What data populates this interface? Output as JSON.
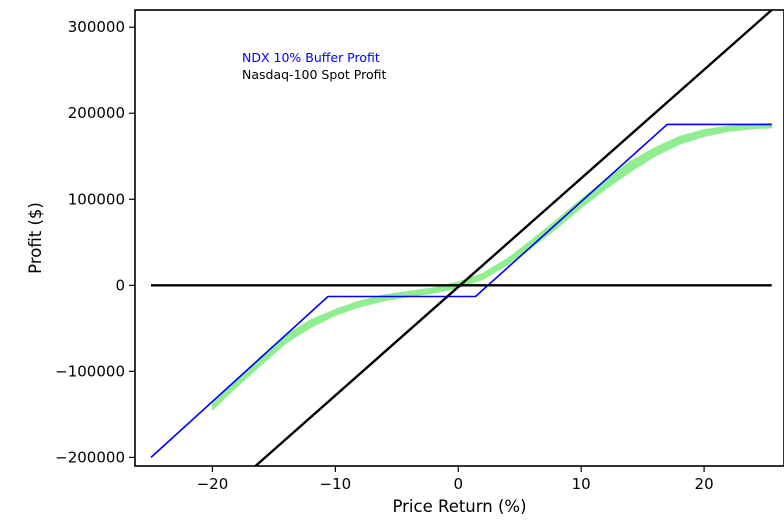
{
  "chart_data": {
    "type": "line",
    "title": "",
    "xlabel": "Price Return (%)",
    "ylabel": "Profit ($)",
    "xlim": [
      -26.3,
      26.5
    ],
    "ylim": [
      -210000,
      320000
    ],
    "xticks": [
      -20,
      -10,
      0,
      10,
      20
    ],
    "xtick_labels": [
      "−20",
      "−10",
      "0",
      "10",
      "20"
    ],
    "yticks": [
      -200000,
      -100000,
      0,
      100000,
      200000,
      300000
    ],
    "ytick_labels": [
      "−200000",
      "−100000",
      "0",
      "100000",
      "200000",
      "300000"
    ],
    "grid": false,
    "legend_position": "upper-left",
    "legend": [
      {
        "label": "NDX 10% Buffer Profit",
        "color": "#0000ff"
      },
      {
        "label": "Nasdaq-100 Spot Profit",
        "color": "#000000"
      }
    ],
    "series": [
      {
        "name": "NDX 10% Buffer Profit",
        "color": "#0000ff",
        "style": "line",
        "x": [
          -25,
          -10.6,
          1.4,
          17,
          25.5
        ],
        "y": [
          -200000,
          -13000,
          -13000,
          187000,
          187000
        ]
      },
      {
        "name": "Nasdaq-100 Spot Profit",
        "color": "#000000",
        "style": "line",
        "x": [
          -16.5,
          25.5
        ],
        "y": [
          -210000,
          320000
        ]
      },
      {
        "color": "#000000",
        "style": "line",
        "x": [
          -25,
          25.5
        ],
        "y": [
          0,
          0
        ]
      },
      {
        "color": "#90ee90",
        "style": "band",
        "x": [
          -20,
          -18,
          -16,
          -14,
          -12,
          -10,
          -8,
          -6,
          -4,
          -2,
          0,
          2,
          4,
          6,
          8,
          10,
          12,
          14,
          16,
          18,
          20,
          22,
          24,
          25.5
        ],
        "y_low": [
          -145000,
          -118000,
          -92000,
          -67000,
          -49000,
          -35000,
          -25000,
          -18000,
          -13000,
          -9000,
          -3000,
          7000,
          24000,
          44000,
          66000,
          90000,
          112000,
          132000,
          150000,
          164000,
          173000,
          179000,
          182000,
          183000
        ],
        "y_high": [
          -138000,
          -110000,
          -82000,
          -58000,
          -40000,
          -28000,
          -18000,
          -11000,
          -7000,
          -3000,
          4000,
          14000,
          31000,
          53000,
          76000,
          100000,
          123000,
          144000,
          160000,
          173000,
          181000,
          185000,
          187000,
          188000
        ]
      }
    ]
  }
}
